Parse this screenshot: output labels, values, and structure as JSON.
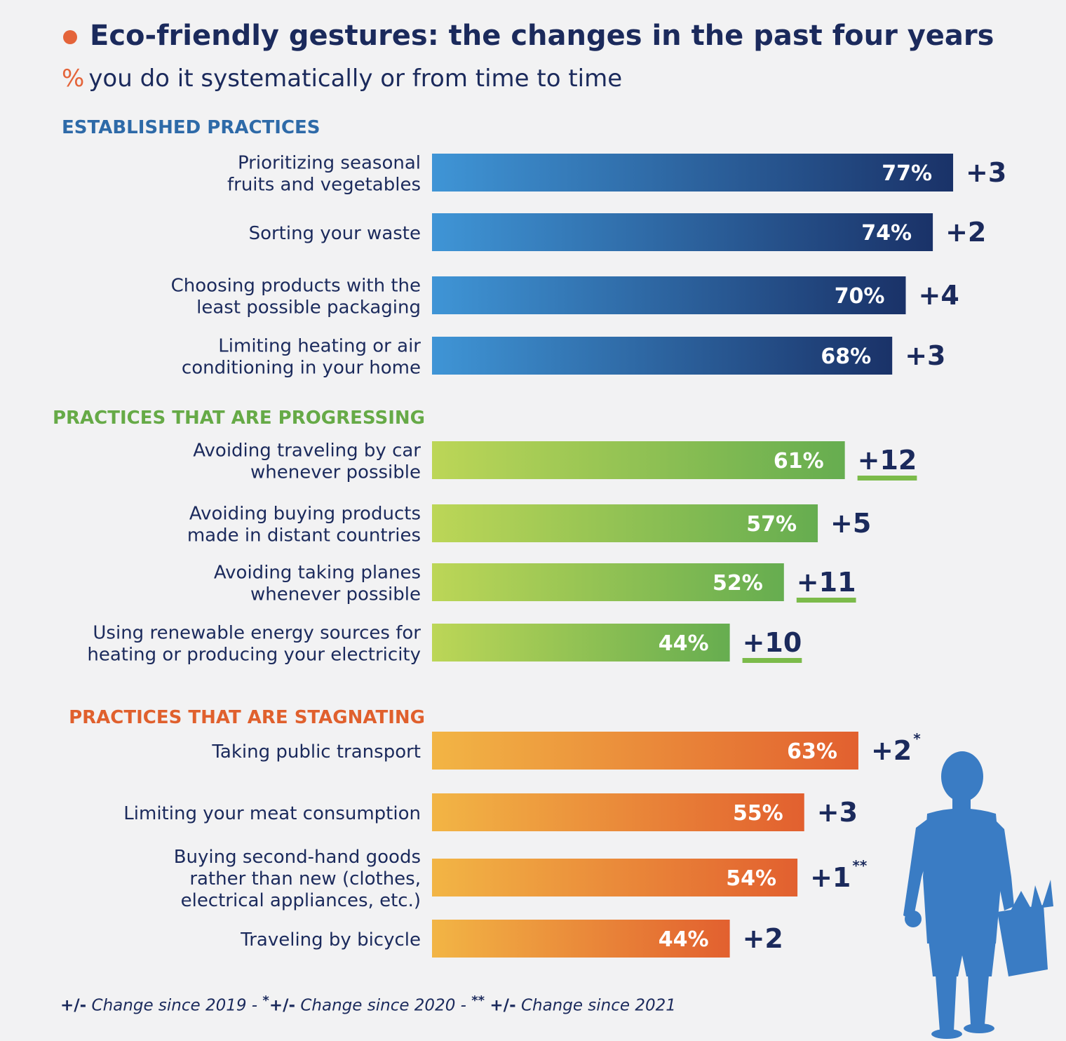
{
  "header": {
    "title": "Eco-friendly gestures: the changes in the past four years",
    "subtitle_symbol": "%",
    "subtitle_text": "you do it systematically or from time to time"
  },
  "footer": {
    "sym1": "+/-",
    "text1": "Change since 2019 -",
    "star1": "*",
    "sym2": "+/-",
    "text2": "Change since 2020 -",
    "star2": "**",
    "sym3": "+/-",
    "text3": "Change since 2021"
  },
  "chart_data": {
    "type": "bar",
    "orientation": "horizontal",
    "unit": "%",
    "groups": [
      {
        "name": "ESTABLISHED PRACTICES",
        "color": "#2e6aa8",
        "gradient": [
          "#3f95d6",
          "#1a3268"
        ],
        "items": [
          {
            "label": [
              "Prioritizing seasonal",
              "fruits and vegetables"
            ],
            "value": 77,
            "value_label": "77%",
            "change": "+3",
            "note": "",
            "highlight": false
          },
          {
            "label": [
              "Sorting your waste"
            ],
            "value": 74,
            "value_label": "74%",
            "change": "+2",
            "note": "",
            "highlight": false
          },
          {
            "label": [
              "Choosing products with the",
              "least possible packaging"
            ],
            "value": 70,
            "value_label": "70%",
            "change": "+4",
            "note": "",
            "highlight": false
          },
          {
            "label": [
              "Limiting heating or air",
              "conditioning in your home"
            ],
            "value": 68,
            "value_label": "68%",
            "change": "+3",
            "note": "",
            "highlight": false
          }
        ]
      },
      {
        "name": "PRACTICES THAT ARE PROGRESSING",
        "color": "#66aa47",
        "gradient": [
          "#bcd657",
          "#66ad50"
        ],
        "items": [
          {
            "label": [
              "Avoiding traveling by car",
              "whenever possible"
            ],
            "value": 61,
            "value_label": "61%",
            "change": "+12",
            "note": "",
            "highlight": true
          },
          {
            "label": [
              "Avoiding buying products",
              "made in distant countries"
            ],
            "value": 57,
            "value_label": "57%",
            "change": "+5",
            "note": "",
            "highlight": false
          },
          {
            "label": [
              "Avoiding taking planes",
              "whenever possible"
            ],
            "value": 52,
            "value_label": "52%",
            "change": "+11",
            "note": "",
            "highlight": true
          },
          {
            "label": [
              "Using renewable energy sources for",
              "heating or producing your electricity"
            ],
            "value": 44,
            "value_label": "44%",
            "change": "+10",
            "note": "",
            "highlight": true
          }
        ]
      },
      {
        "name": "PRACTICES THAT ARE STAGNATING",
        "color": "#e0602d",
        "gradient": [
          "#f2b545",
          "#e2602f"
        ],
        "items": [
          {
            "label": [
              "Taking public transport"
            ],
            "value": 63,
            "value_label": "63%",
            "change": "+2",
            "note": "*",
            "highlight": false
          },
          {
            "label": [
              "Limiting your meat consumption"
            ],
            "value": 55,
            "value_label": "55%",
            "change": "+3",
            "note": "",
            "highlight": false
          },
          {
            "label": [
              "Buying second-hand goods",
              "rather than new (clothes,",
              "electrical appliances, etc.)"
            ],
            "value": 54,
            "value_label": "54%",
            "change": "+1",
            "note": "**",
            "highlight": false
          },
          {
            "label": [
              "Traveling by bicycle"
            ],
            "value": 44,
            "value_label": "44%",
            "change": "+2",
            "note": "",
            "highlight": false
          }
        ]
      }
    ]
  },
  "colors": {
    "navy": "#1b2a5c",
    "accent_orange": "#e4643a",
    "highlight_green": "#7cbb4a",
    "silhouette": "#3a7cc4"
  }
}
